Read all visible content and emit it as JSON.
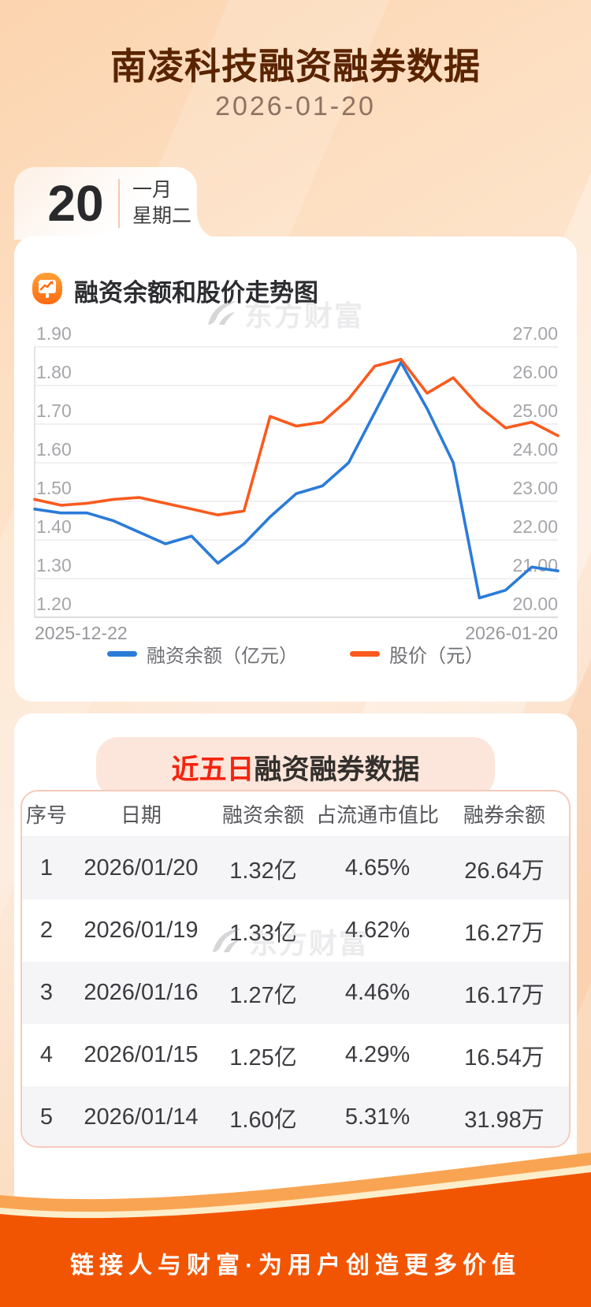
{
  "page": {
    "title": "南凌科技融资融券数据",
    "date": "2026-01-20"
  },
  "calendar": {
    "day": "20",
    "month": "一月",
    "weekday": "星期二"
  },
  "watermark": {
    "brand": "东方财富"
  },
  "chart_section": {
    "title": "融资余额和股价走势图"
  },
  "chart_data": {
    "type": "line",
    "title": "融资余额和股价走势图",
    "x_start_label": "2025-12-22",
    "x_end_label": "2026-01-20",
    "grid": true,
    "legend_position": "bottom",
    "left_axis": {
      "min": 1.2,
      "max": 1.9,
      "ticks": [
        "1.90",
        "1.80",
        "1.70",
        "1.60",
        "1.50",
        "1.40",
        "1.30",
        "1.20"
      ]
    },
    "right_axis": {
      "min": 20.0,
      "max": 27.0,
      "ticks": [
        "27.00",
        "26.00",
        "25.00",
        "24.00",
        "23.00",
        "22.00",
        "21.00",
        "20.00"
      ]
    },
    "series": [
      {
        "name": "融资余额（亿元）",
        "axis": "left",
        "color": "#2b7bd9",
        "values": [
          1.48,
          1.47,
          1.47,
          1.45,
          1.42,
          1.39,
          1.41,
          1.34,
          1.39,
          1.46,
          1.52,
          1.54,
          1.6,
          1.73,
          1.86,
          1.74,
          1.6,
          1.25,
          1.27,
          1.33,
          1.32
        ]
      },
      {
        "name": "股价（元）",
        "axis": "right",
        "color": "#fa5a1e",
        "values": [
          23.05,
          22.9,
          22.95,
          23.05,
          23.1,
          22.95,
          22.8,
          22.65,
          22.75,
          25.2,
          24.95,
          25.05,
          25.65,
          26.5,
          26.68,
          25.8,
          26.2,
          25.45,
          24.9,
          25.05,
          24.7
        ]
      }
    ]
  },
  "table_section": {
    "badge": {
      "highlight": "近五日",
      "rest": "融资融券数据"
    },
    "columns": [
      "序号",
      "日期",
      "融资余额",
      "占流通市值比",
      "融券余额"
    ],
    "rows": [
      [
        "1",
        "2026/01/20",
        "1.32亿",
        "4.65%",
        "26.64万"
      ],
      [
        "2",
        "2026/01/19",
        "1.33亿",
        "4.62%",
        "16.27万"
      ],
      [
        "3",
        "2026/01/16",
        "1.27亿",
        "4.46%",
        "16.17万"
      ],
      [
        "4",
        "2026/01/15",
        "1.25亿",
        "4.29%",
        "16.54万"
      ],
      [
        "5",
        "2026/01/14",
        "1.60亿",
        "5.31%",
        "31.98万"
      ]
    ]
  },
  "footer": {
    "slogan": "链接人与财富·为用户创造更多价值"
  },
  "colors": {
    "accent_blue": "#2b7bd9",
    "accent_orange": "#fa5a1e",
    "title_brown": "#5a2400",
    "badge_red": "#f3240f",
    "badge_bg": "#fce5da",
    "footer_orange": "#f25502",
    "footer_light_orange": "#f9a452",
    "footer_cream": "#fdeecb"
  }
}
